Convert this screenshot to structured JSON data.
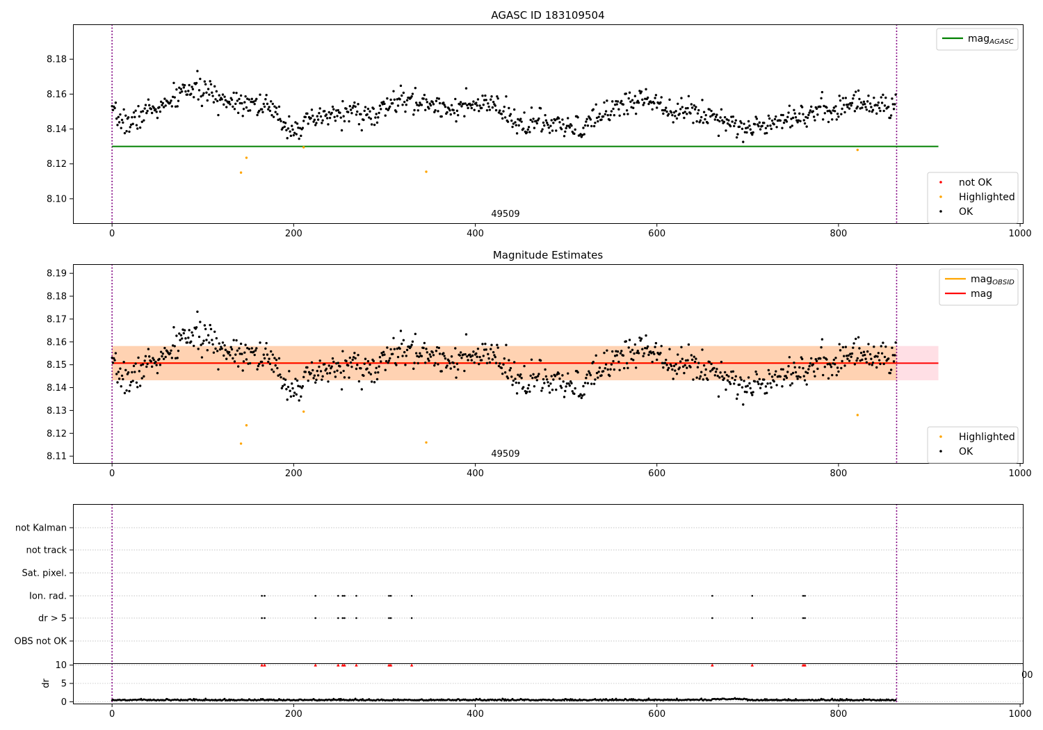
{
  "chart_data": [
    {
      "type": "scatter",
      "title": "AGASC ID 183109504",
      "xlim": [
        -43,
        1003
      ],
      "ylim": [
        8.086,
        8.2
      ],
      "xticks": [
        "0",
        "200",
        "400",
        "600",
        "800",
        "1000"
      ],
      "yticks": [
        "8.10",
        "8.12",
        "8.14",
        "8.16",
        "8.18"
      ],
      "vlines": [
        0,
        864
      ],
      "annotation": "49509",
      "hline": {
        "name": "mag",
        "sub": "AGASC",
        "y": 8.13,
        "color": "#008000",
        "x": [
          0,
          910
        ]
      },
      "series": [
        {
          "name": "not OK",
          "color": "#ff0000",
          "points": []
        },
        {
          "name": "Highlighted",
          "color": "#ffa500",
          "points": [
            [
              142,
              8.115
            ],
            [
              148,
              8.1235
            ],
            [
              211,
              8.1295
            ],
            [
              346,
              8.1155
            ],
            [
              821,
              8.128
            ]
          ]
        },
        {
          "name": "OK",
          "color": "#000000",
          "noise": {
            "n": 864,
            "seed": 7,
            "amp": 0.0035
          }
        }
      ],
      "curve": [
        [
          0,
          8.148
        ],
        [
          20,
          8.143
        ],
        [
          40,
          8.151
        ],
        [
          60,
          8.153
        ],
        [
          80,
          8.163
        ],
        [
          100,
          8.162
        ],
        [
          120,
          8.157
        ],
        [
          150,
          8.156
        ],
        [
          170,
          8.153
        ],
        [
          195,
          8.141
        ],
        [
          210,
          8.142
        ],
        [
          235,
          8.147
        ],
        [
          260,
          8.15
        ],
        [
          290,
          8.147
        ],
        [
          310,
          8.156
        ],
        [
          340,
          8.155
        ],
        [
          380,
          8.152
        ],
        [
          420,
          8.154
        ],
        [
          445,
          8.143
        ],
        [
          470,
          8.144
        ],
        [
          500,
          8.14
        ],
        [
          520,
          8.141
        ],
        [
          550,
          8.152
        ],
        [
          590,
          8.158
        ],
        [
          620,
          8.151
        ],
        [
          650,
          8.149
        ],
        [
          680,
          8.145
        ],
        [
          700,
          8.139
        ],
        [
          730,
          8.146
        ],
        [
          760,
          8.148
        ],
        [
          790,
          8.151
        ],
        [
          820,
          8.155
        ],
        [
          864,
          8.153
        ]
      ],
      "legend_top": [
        {
          "label": "mag",
          "sub": "AGASC",
          "color": "#008000"
        }
      ],
      "legend_bottom": [
        {
          "label": "not OK",
          "color": "#ff0000"
        },
        {
          "label": "Highlighted",
          "color": "#ffa500"
        },
        {
          "label": "OK",
          "color": "#000000"
        }
      ]
    },
    {
      "type": "scatter",
      "title": "Magnitude Estimates",
      "xlim": [
        -43,
        1003
      ],
      "ylim": [
        8.107,
        8.194
      ],
      "xticks": [
        "0",
        "200",
        "400",
        "600",
        "800",
        "1000"
      ],
      "yticks": [
        "8.11",
        "8.12",
        "8.13",
        "8.14",
        "8.15",
        "8.16",
        "8.17",
        "8.18",
        "8.19"
      ],
      "vlines": [
        0,
        864
      ],
      "annotation": "49509",
      "bands": [
        {
          "y": [
            8.1432,
            8.1582
          ],
          "x": [
            0,
            910
          ],
          "color": "#ffc0cb",
          "opacity": 0.5
        },
        {
          "y": [
            8.1432,
            8.1582
          ],
          "x": [
            0,
            864
          ],
          "color": "#ffa500",
          "opacity": 0.22
        }
      ],
      "hlines": [
        {
          "name": "mag",
          "sub": "OBSID",
          "y": 8.1508,
          "x": [
            0,
            864
          ],
          "color": "#ffa500"
        },
        {
          "name": "mag",
          "y": 8.1507,
          "x": [
            0,
            910
          ],
          "color": "#ff0000"
        }
      ],
      "series": [
        {
          "name": "Highlighted",
          "color": "#ffa500",
          "points": [
            [
              142,
              8.1155
            ],
            [
              148,
              8.1235
            ],
            [
              211,
              8.1295
            ],
            [
              346,
              8.116
            ],
            [
              821,
              8.128
            ]
          ]
        },
        {
          "name": "OK",
          "color": "#000000",
          "noise": {
            "n": 864,
            "seed": 7,
            "amp": 0.0035
          }
        }
      ],
      "legend_top": [
        {
          "label": "mag",
          "sub": "OBSID",
          "color": "#ffa500"
        },
        {
          "label": "mag",
          "color": "#ff0000"
        }
      ],
      "legend_bottom": [
        {
          "label": "Highlighted",
          "color": "#ffa500"
        },
        {
          "label": "OK",
          "color": "#000000"
        }
      ]
    },
    {
      "type": "scatter",
      "title": "",
      "xlim": [
        -43,
        1003
      ],
      "categories": [
        "not Kalman",
        "not track",
        "Sat. pixel.",
        "Ion. rad.",
        "dr > 5",
        "OBS not OK"
      ],
      "flag_rows": {
        "Ion. rad.": [
          165,
          168,
          224,
          249,
          254,
          256,
          269,
          305,
          307,
          330,
          661,
          705,
          761,
          763
        ],
        "dr > 5": [
          165,
          168,
          224,
          249,
          254,
          256,
          269,
          305,
          307,
          330,
          661,
          705,
          761,
          763
        ]
      },
      "vlines": [
        0,
        864
      ]
    },
    {
      "type": "scatter",
      "title": "",
      "xlim": [
        -43,
        1003
      ],
      "ylim": [
        -0.5,
        10.5
      ],
      "ylabel": "dr",
      "xticks": [
        "0",
        "200",
        "400",
        "600",
        "800",
        "1000"
      ],
      "yticks": [
        "0",
        "5",
        "10"
      ],
      "vlines": [
        0,
        864
      ],
      "clipped_points": [
        165,
        168,
        224,
        249,
        254,
        256,
        269,
        305,
        307,
        330,
        661,
        705,
        761,
        763
      ],
      "series": [
        {
          "name": "dr",
          "color": "#000000",
          "noise": {
            "n": 864,
            "seed": 11,
            "amp": 0.3
          },
          "base": 0.35
        }
      ],
      "stray_tick": "00"
    }
  ]
}
